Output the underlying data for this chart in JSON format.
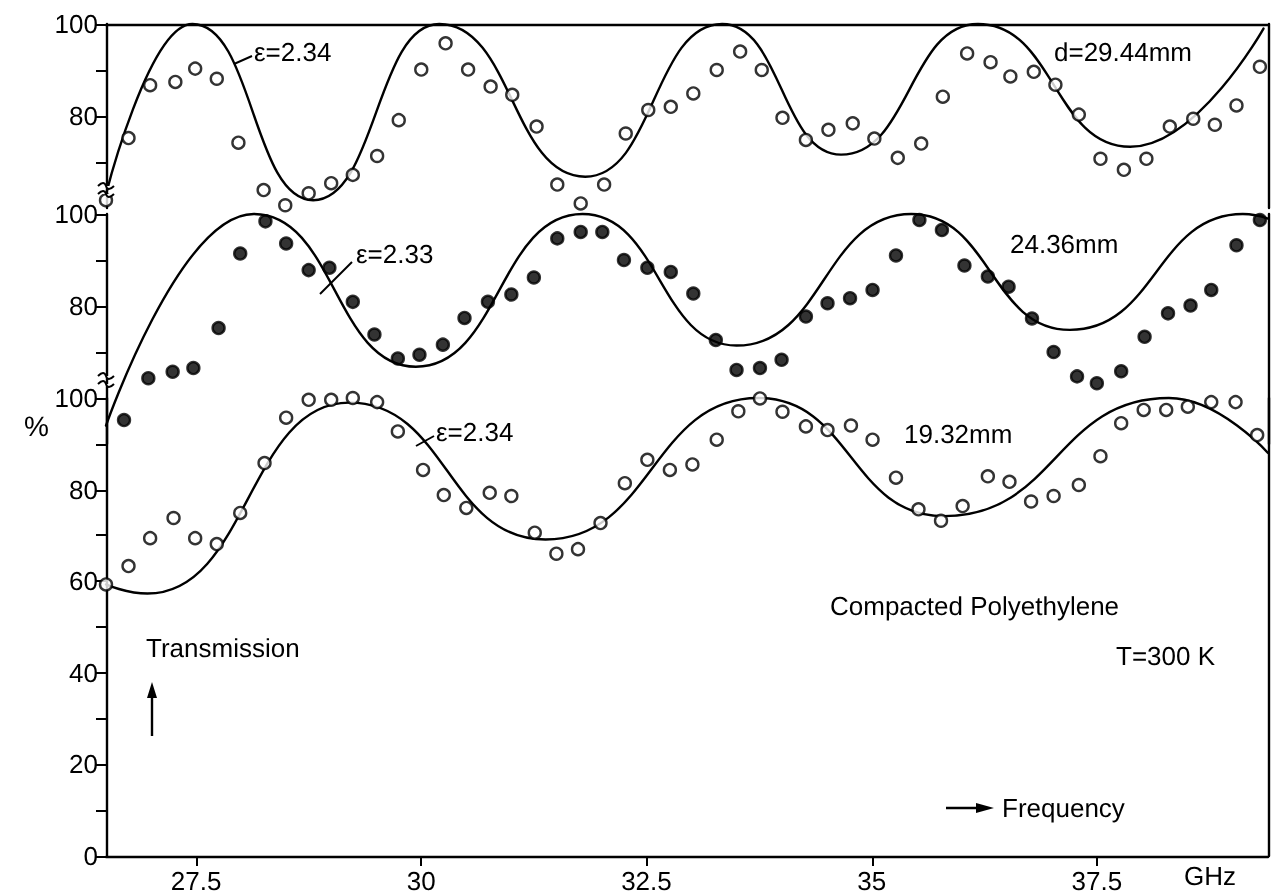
{
  "chart_data": [
    {
      "type": "line",
      "xlim": [
        26.5,
        39.4
      ],
      "xticks": [
        27.5,
        30,
        32.5,
        35,
        37.5
      ],
      "ylim": [
        60,
        100
      ],
      "yticks": [
        {
          "value": 70,
          "label": null
        },
        80,
        {
          "value": 90,
          "label": null
        },
        100
      ],
      "tick_labels": "y",
      "grid": false,
      "annotations": [
        "ε=2.34",
        "d=29.44mm"
      ],
      "series": [
        {
          "type": "line",
          "color": "#000000",
          "marker": "none",
          "x": [
            26.5,
            27.46,
            28.8,
            30.2,
            31.82,
            33.34,
            34.66,
            36.18,
            37.87,
            39.35
          ],
          "values": [
            63,
            100,
            61.7,
            100,
            66.8,
            100,
            71.6,
            100,
            73.3,
            99
          ]
        },
        {
          "type": "scatter",
          "color": "#ffffff",
          "marker": "circle",
          "x": [
            26.5,
            26.75,
            26.99,
            27.27,
            27.49,
            27.73,
            27.97,
            28.25,
            28.49,
            28.75,
            29.0,
            29.24,
            29.51,
            29.75,
            30.0,
            30.27,
            30.52,
            30.77,
            31.01,
            31.28,
            31.51,
            31.77,
            32.03,
            32.27,
            32.52,
            32.77,
            33.02,
            33.28,
            33.54,
            33.78,
            34.01,
            34.27,
            34.52,
            34.79,
            35.03,
            35.29,
            35.55,
            35.79,
            36.06,
            36.32,
            36.54,
            36.8,
            37.04,
            37.3,
            37.54,
            37.8,
            38.05,
            38.31,
            38.57,
            38.81,
            39.05,
            39.31
          ],
          "values": [
            61.7,
            75.2,
            86.7,
            87.4,
            90.3,
            88.1,
            74.2,
            63.9,
            60.6,
            63.2,
            65.4,
            67.2,
            71.3,
            79.1,
            90.1,
            95.8,
            90.1,
            86.4,
            84.6,
            77.7,
            65.1,
            61.0,
            65.1,
            76.2,
            81.3,
            82.0,
            84.9,
            90.0,
            94.0,
            90.0,
            79.6,
            74.8,
            77.0,
            78.4,
            75.1,
            70.9,
            74.0,
            84.2,
            93.6,
            91.7,
            88.6,
            89.6,
            86.8,
            80.3,
            70.7,
            68.3,
            70.7,
            77.7,
            79.4,
            78.1,
            82.3,
            90.7
          ]
        }
      ]
    },
    {
      "type": "line",
      "xlim": [
        26.5,
        39.4
      ],
      "xticks": [
        27.5,
        30,
        32.5,
        35,
        37.5
      ],
      "ylim": [
        50,
        100
      ],
      "yticks": [
        {
          "value": 70,
          "label": null
        },
        80,
        {
          "value": 90,
          "label": null
        },
        100
      ],
      "tick_labels": "y",
      "grid": false,
      "annotations": [
        "ε=2.33",
        "24.36mm"
      ],
      "series": [
        {
          "type": "line",
          "color": "#000000",
          "marker": "none",
          "x": [
            26.5,
            28.14,
            29.94,
            31.79,
            33.5,
            35.44,
            37.2,
            39.12,
            39.4
          ],
          "values": [
            54,
            100,
            66.8,
            100,
            71.4,
            100,
            74.8,
            100,
            99
          ]
        },
        {
          "type": "scatter",
          "color": "#000000",
          "marker": "circle",
          "x": [
            26.7,
            26.97,
            27.24,
            27.47,
            27.75,
            27.99,
            28.27,
            28.5,
            28.75,
            28.98,
            29.24,
            29.48,
            29.74,
            29.98,
            30.24,
            30.48,
            30.74,
            31.0,
            31.25,
            31.51,
            31.77,
            32.01,
            32.25,
            32.51,
            32.77,
            33.02,
            33.27,
            33.5,
            33.76,
            34.0,
            34.27,
            34.51,
            34.76,
            35.01,
            35.27,
            35.53,
            35.78,
            36.03,
            36.29,
            36.52,
            36.78,
            37.02,
            37.28,
            37.5,
            37.77,
            38.03,
            38.29,
            38.54,
            38.77,
            39.05,
            39.31
          ],
          "values": [
            55.2,
            64.3,
            65.7,
            66.5,
            75.2,
            91.4,
            98.4,
            93.6,
            87.8,
            88.3,
            80.9,
            73.8,
            68.6,
            69.4,
            71.6,
            77.4,
            80.9,
            82.5,
            86.2,
            94.7,
            96.1,
            96.1,
            90.0,
            88.3,
            87.4,
            82.7,
            72.6,
            66.1,
            66.5,
            68.3,
            77.7,
            80.6,
            81.7,
            83.5,
            91.0,
            98.7,
            96.5,
            88.8,
            86.4,
            84.2,
            77.3,
            70.0,
            64.7,
            63.2,
            65.8,
            73.3,
            78.4,
            80.1,
            83.5,
            93.2,
            98.7
          ]
        }
      ]
    },
    {
      "type": "line",
      "xlim": [
        26.5,
        39.4
      ],
      "xticks": [
        27.5,
        30,
        32.5,
        35,
        37.5
      ],
      "ylim": [
        0,
        100
      ],
      "yticks": [
        0,
        {
          "value": 10,
          "label": null
        },
        20,
        {
          "value": 30,
          "label": null
        },
        40,
        {
          "value": 50,
          "label": null
        },
        60,
        {
          "value": 70,
          "label": null
        },
        80,
        {
          "value": 90,
          "label": null
        },
        100
      ],
      "xlabel": "GHz",
      "ylabel": "%",
      "grid": false,
      "annotations": [
        "ε=2.34",
        "19.32mm",
        "Compacted Polyethylene",
        "T=300 K",
        "Transmission",
        "Frequency"
      ],
      "series": [
        {
          "type": "line",
          "color": "#000000",
          "marker": "none",
          "x": [
            26.5,
            26.96,
            29.2,
            31.38,
            33.74,
            35.8,
            38.3,
            39.4
          ],
          "values": [
            59.3,
            57.3,
            99,
            69.1,
            100,
            74.2,
            100,
            88
          ]
        },
        {
          "type": "scatter",
          "color": "#ffffff",
          "marker": "circle",
          "x": [
            26.5,
            26.75,
            26.99,
            27.25,
            27.49,
            27.73,
            27.99,
            28.26,
            28.5,
            28.75,
            29.0,
            29.24,
            29.51,
            29.74,
            30.02,
            30.25,
            30.5,
            30.76,
            31.0,
            31.26,
            31.5,
            31.74,
            31.99,
            32.26,
            32.51,
            32.76,
            33.01,
            33.28,
            33.52,
            33.76,
            34.01,
            34.27,
            34.51,
            34.77,
            35.01,
            35.27,
            35.52,
            35.77,
            36.01,
            36.29,
            36.53,
            36.77,
            37.02,
            37.3,
            37.54,
            37.77,
            38.02,
            38.27,
            38.51,
            38.77,
            39.04,
            39.28
          ],
          "values": [
            59.3,
            63.3,
            69.4,
            73.8,
            69.4,
            68.1,
            74.9,
            85.8,
            95.7,
            99.6,
            99.6,
            100,
            99.1,
            92.7,
            84.3,
            78.8,
            76.0,
            79.3,
            78.6,
            70.6,
            66.0,
            67.0,
            72.7,
            81.4,
            86.5,
            84.3,
            85.5,
            90.9,
            97.1,
            99.9,
            97.0,
            93.8,
            93.0,
            94.0,
            90.9,
            82.6,
            75.7,
            73.2,
            76.4,
            82.9,
            81.7,
            77.4,
            78.6,
            81.0,
            87.3,
            94.5,
            97.4,
            97.4,
            98.1,
            99.1,
            99.1,
            91.9
          ]
        }
      ]
    }
  ]
}
